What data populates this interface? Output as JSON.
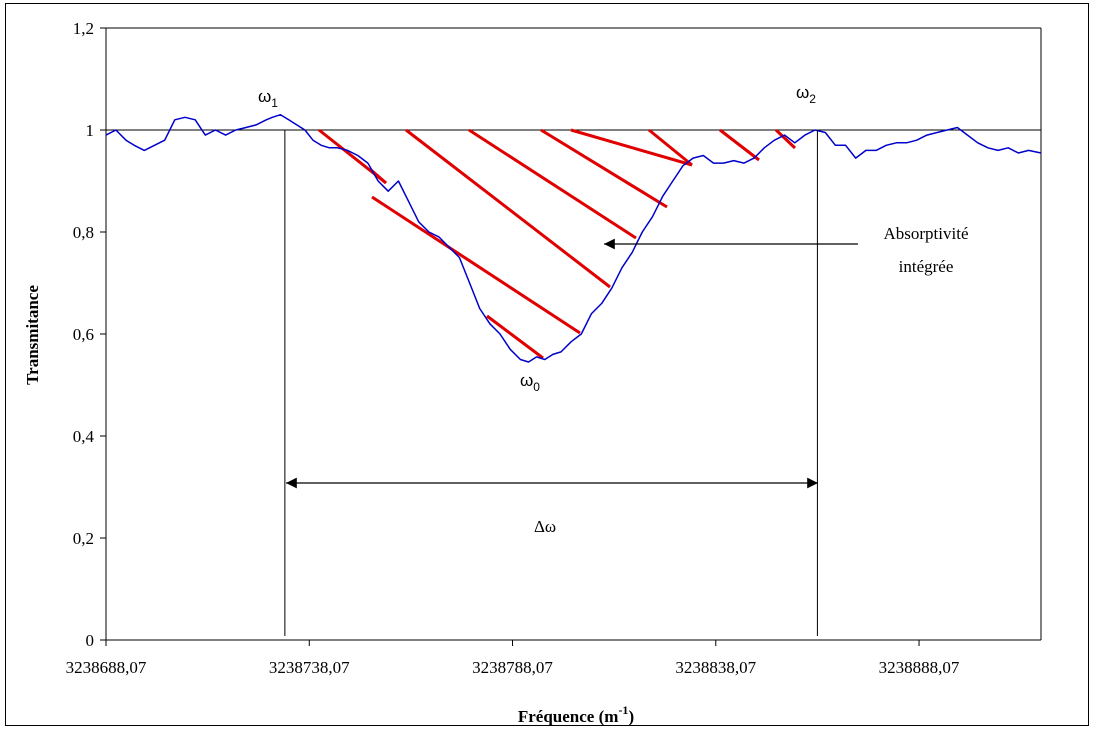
{
  "chart_data": {
    "type": "line",
    "xlabel": "Fréquence (m",
    "xlabel_sup": "-1",
    "xlabel_end": ")",
    "ylabel": "Transmitance",
    "ylim": [
      0,
      1.2
    ],
    "xlim": [
      3238688.07,
      3238918.07
    ],
    "y_ticks": [
      0,
      0.2,
      0.4,
      0.6,
      0.8,
      1,
      1.2
    ],
    "y_tick_labels": [
      "0",
      "0,2",
      "0,4",
      "0,6",
      "0,8",
      "1",
      "1,2"
    ],
    "x_ticks": [
      3238688.07,
      3238738.07,
      3238788.07,
      3238838.07,
      3238888.07
    ],
    "x_tick_labels": [
      "3238688,07",
      "3238738,07",
      "3238788,07",
      "3238838,07",
      "3238888,07"
    ],
    "reference_line_y": 1,
    "series": [
      {
        "color": "#0000cc",
        "x": [
          3238688.07,
          3238690.5,
          3238693,
          3238695,
          3238697.5,
          3238700,
          3238702.5,
          3238705,
          3238707.5,
          3238710,
          3238712.5,
          3238715,
          3238717.5,
          3238720,
          3238722.5,
          3238725,
          3238727.5,
          3238729,
          3238731,
          3238733,
          3238735,
          3238737,
          3238739,
          3238741,
          3238743,
          3238745,
          3238747.5,
          3238750,
          3238752.5,
          3238755,
          3238757.5,
          3238760,
          3238762.5,
          3238765,
          3238767.5,
          3238770,
          3238772.5,
          3238775,
          3238777.5,
          3238780,
          3238782.5,
          3238785,
          3238787.5,
          3238790,
          3238792,
          3238794,
          3238796,
          3238798,
          3238800,
          3238802.5,
          3238805,
          3238807.5,
          3238810,
          3238812.5,
          3238815,
          3238817.5,
          3238820,
          3238822.5,
          3238825,
          3238827.5,
          3238830,
          3238832.5,
          3238835,
          3238837.5,
          3238840,
          3238842.5,
          3238845,
          3238847.5,
          3238850,
          3238852.5,
          3238855,
          3238857.5,
          3238860,
          3238862.5,
          3238865,
          3238867.5,
          3238870,
          3238872.5,
          3238875,
          3238877.5,
          3238880,
          3238882.5,
          3238885,
          3238887.5,
          3238890,
          3238892.5,
          3238895,
          3238897.5,
          3238900,
          3238902.5,
          3238905,
          3238907.5,
          3238910,
          3238912.5,
          3238915,
          3238918.07
        ],
        "y": [
          0.99,
          1.0,
          0.98,
          0.97,
          0.96,
          0.97,
          0.98,
          1.02,
          1.025,
          1.02,
          0.99,
          1.0,
          0.99,
          1.0,
          1.005,
          1.01,
          1.02,
          1.025,
          1.03,
          1.02,
          1.01,
          1.0,
          0.98,
          0.97,
          0.965,
          0.965,
          0.96,
          0.95,
          0.935,
          0.9,
          0.88,
          0.9,
          0.86,
          0.82,
          0.8,
          0.79,
          0.77,
          0.75,
          0.7,
          0.65,
          0.62,
          0.6,
          0.57,
          0.55,
          0.545,
          0.555,
          0.55,
          0.56,
          0.565,
          0.585,
          0.6,
          0.64,
          0.66,
          0.69,
          0.73,
          0.76,
          0.8,
          0.83,
          0.87,
          0.9,
          0.93,
          0.945,
          0.95,
          0.935,
          0.935,
          0.94,
          0.935,
          0.945,
          0.965,
          0.98,
          0.99,
          0.975,
          0.99,
          1.0,
          0.995,
          0.97,
          0.97,
          0.945,
          0.96,
          0.96,
          0.97,
          0.975,
          0.975,
          0.98,
          0.99,
          0.995,
          1.0,
          1.005,
          0.99,
          0.975,
          0.965,
          0.96,
          0.965,
          0.955,
          0.96,
          0.955
        ]
      }
    ],
    "vertical_markers": [
      {
        "x": 3238732.07,
        "y_top": 1.0,
        "y_bottom": 0
      },
      {
        "x": 3238863.07,
        "y_top": 1.0,
        "y_bottom": 0
      }
    ],
    "hatch_color": "#e00000",
    "annotations": {
      "omega1": {
        "base": "ω",
        "sub": "1"
      },
      "omega2": {
        "base": "ω",
        "sub": "2"
      },
      "omega0": {
        "base": "ω",
        "sub": "0"
      },
      "delta_omega": "Δω",
      "area_label_line1": "Absorptivité",
      "area_label_line2": "intégrée"
    }
  }
}
